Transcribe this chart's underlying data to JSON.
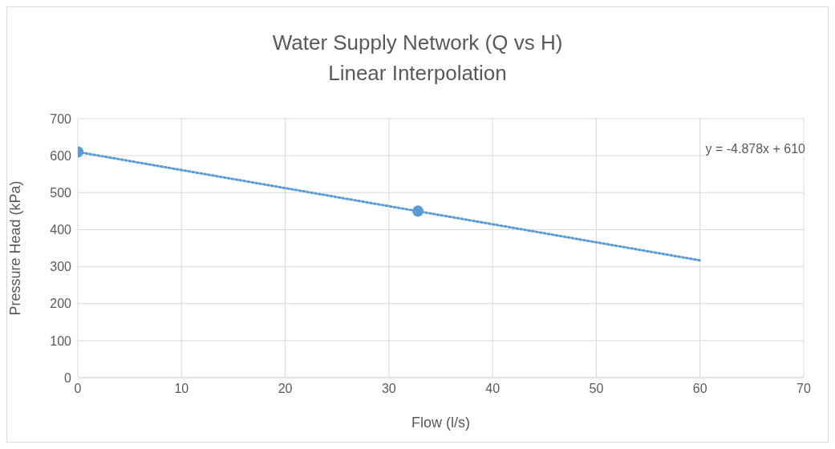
{
  "chart_data": {
    "type": "scatter",
    "title": "Water Supply Network (Q vs H)",
    "subtitle": "Linear Interpolation",
    "xlabel": "Flow (l/s)",
    "ylabel": "Pressure Head (kPa)",
    "xlim": [
      0,
      70
    ],
    "xticks": [
      0,
      10,
      20,
      30,
      40,
      50,
      60,
      70
    ],
    "ylim": [
      0,
      700
    ],
    "yticks": [
      0,
      100,
      200,
      300,
      400,
      500,
      600,
      700
    ],
    "grid": true,
    "series": [
      {
        "color": "#5b9bd5",
        "x": [
          0,
          32.8
        ],
        "values": [
          610,
          450
        ],
        "marker": "circle"
      },
      {
        "type": "line",
        "color": "#5b9bd5",
        "x": [
          0,
          60
        ],
        "values": [
          610,
          317
        ],
        "line_style": "dotted",
        "marker": "none"
      }
    ],
    "annotations": [
      "y = -4.878x + 610"
    ]
  }
}
